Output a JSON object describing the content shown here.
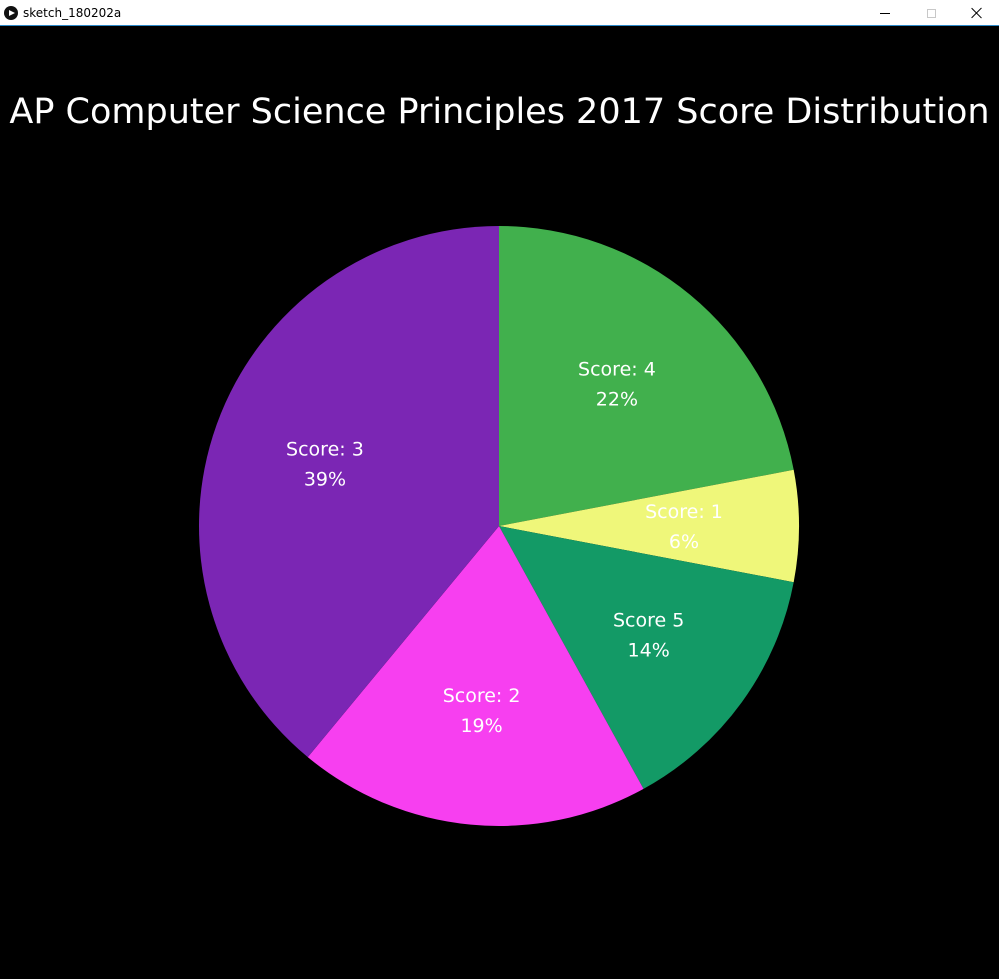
{
  "window": {
    "title": "sketch_180202a",
    "icon": "play-icon"
  },
  "chart_data": {
    "type": "pie",
    "title": "AP Computer Science Principles 2017 Score Distribution",
    "slices": [
      {
        "label": "Score: 4",
        "percent_label": "22%",
        "value": 22,
        "color": "#41b04d"
      },
      {
        "label": "Score: 1",
        "percent_label": "6%",
        "value": 6,
        "color": "#eff77a"
      },
      {
        "label": "Score 5",
        "percent_label": "14%",
        "value": 14,
        "color": "#139a66"
      },
      {
        "label": "Score: 2",
        "percent_label": "19%",
        "value": 19,
        "color": "#f73ff0"
      },
      {
        "label": "Score: 3",
        "percent_label": "39%",
        "value": 39,
        "color": "#7b26b4"
      }
    ]
  }
}
